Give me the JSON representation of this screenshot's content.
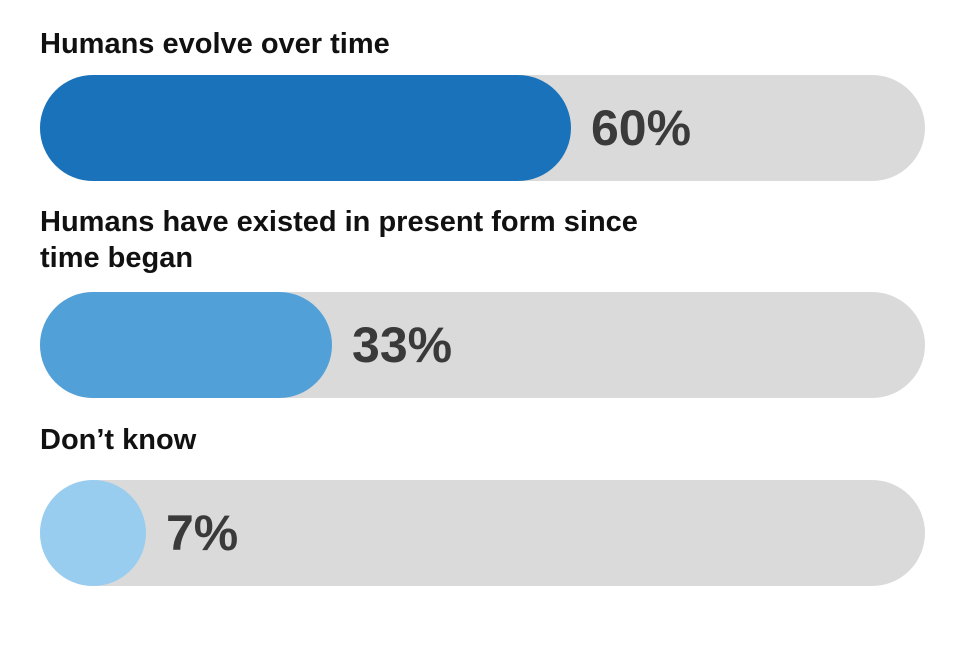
{
  "chart_data": {
    "type": "bar",
    "orientation": "horizontal",
    "categories": [
      "Humans evolve over time",
      "Humans have existed in present form since time began",
      "Don’t know"
    ],
    "values": [
      60,
      33,
      7
    ],
    "value_labels": [
      "60%",
      "33%",
      "7%"
    ],
    "colors": [
      "#1a73ba",
      "#52a0d8",
      "#99cdf0"
    ],
    "xlim": [
      0,
      100
    ]
  }
}
